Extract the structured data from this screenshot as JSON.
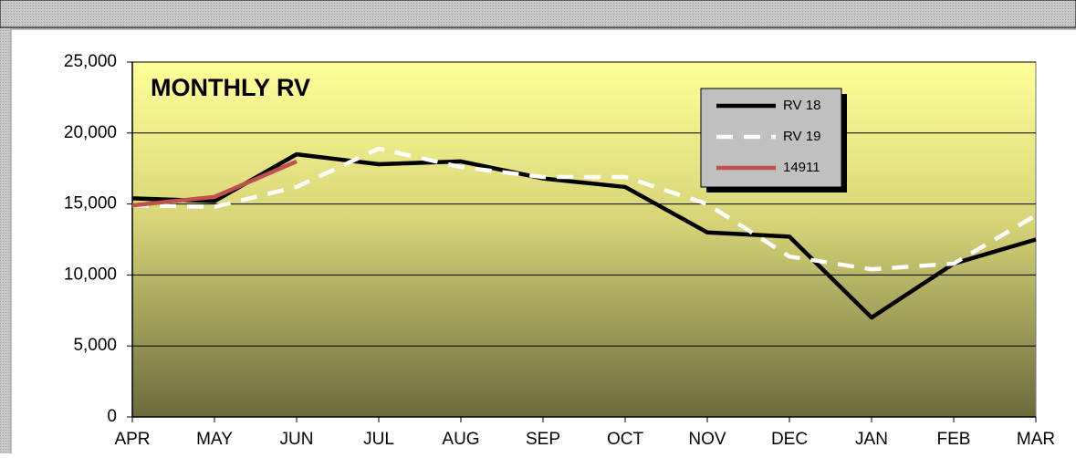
{
  "chart_data": {
    "type": "line",
    "title": "MONTHLY RV",
    "categories": [
      "APR",
      "MAY",
      "JUN",
      "JUL",
      "AUG",
      "SEP",
      "OCT",
      "NOV",
      "DEC",
      "JAN",
      "FEB",
      "MAR"
    ],
    "series": [
      {
        "name": "RV 18",
        "color": "#000000",
        "dashed": false,
        "values": [
          15400,
          15200,
          18500,
          17800,
          18000,
          16800,
          16200,
          13000,
          12700,
          7000,
          10800,
          12500
        ]
      },
      {
        "name": "RV 19",
        "color": "#ffffff",
        "dashed": true,
        "values": [
          14900,
          14800,
          16200,
          18900,
          17600,
          16900,
          16900,
          15000,
          11300,
          10400,
          10800,
          14200
        ]
      },
      {
        "name": "14911",
        "color": "#c0504d",
        "dashed": false,
        "values": [
          14900,
          15500,
          18000,
          null,
          null,
          null,
          null,
          null,
          null,
          null,
          null,
          null
        ]
      }
    ],
    "ylim": [
      0,
      25000
    ],
    "yticks": [
      0,
      {
        "value": 5000,
        "label": "5,000"
      },
      {
        "value": 10000,
        "label": "10,000"
      },
      {
        "value": 15000,
        "label": "15,000"
      },
      {
        "value": 20000,
        "label": "20,000"
      },
      {
        "value": 25000,
        "label": "25,000"
      }
    ],
    "grid": true
  }
}
